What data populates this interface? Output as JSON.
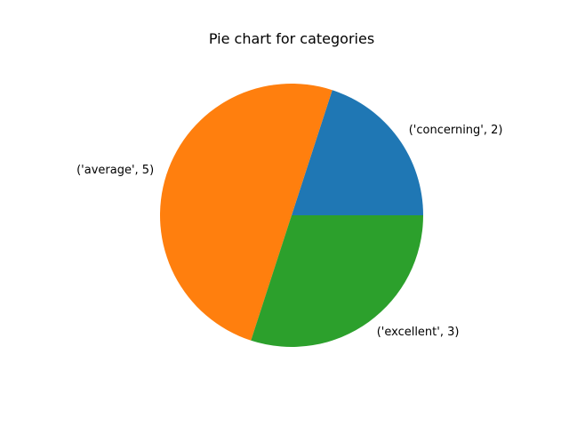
{
  "chart_data": {
    "type": "pie",
    "title": "Pie chart for categories",
    "start_angle_deg": 0,
    "direction": "counterclockwise",
    "slices": [
      {
        "label": "('concerning', 2)",
        "value": 2,
        "color": "#1f77b4"
      },
      {
        "label": "('average', 5)",
        "value": 5,
        "color": "#ff7f0e"
      },
      {
        "label": "('excellent', 3)",
        "value": 3,
        "color": "#2ca02c"
      }
    ]
  }
}
